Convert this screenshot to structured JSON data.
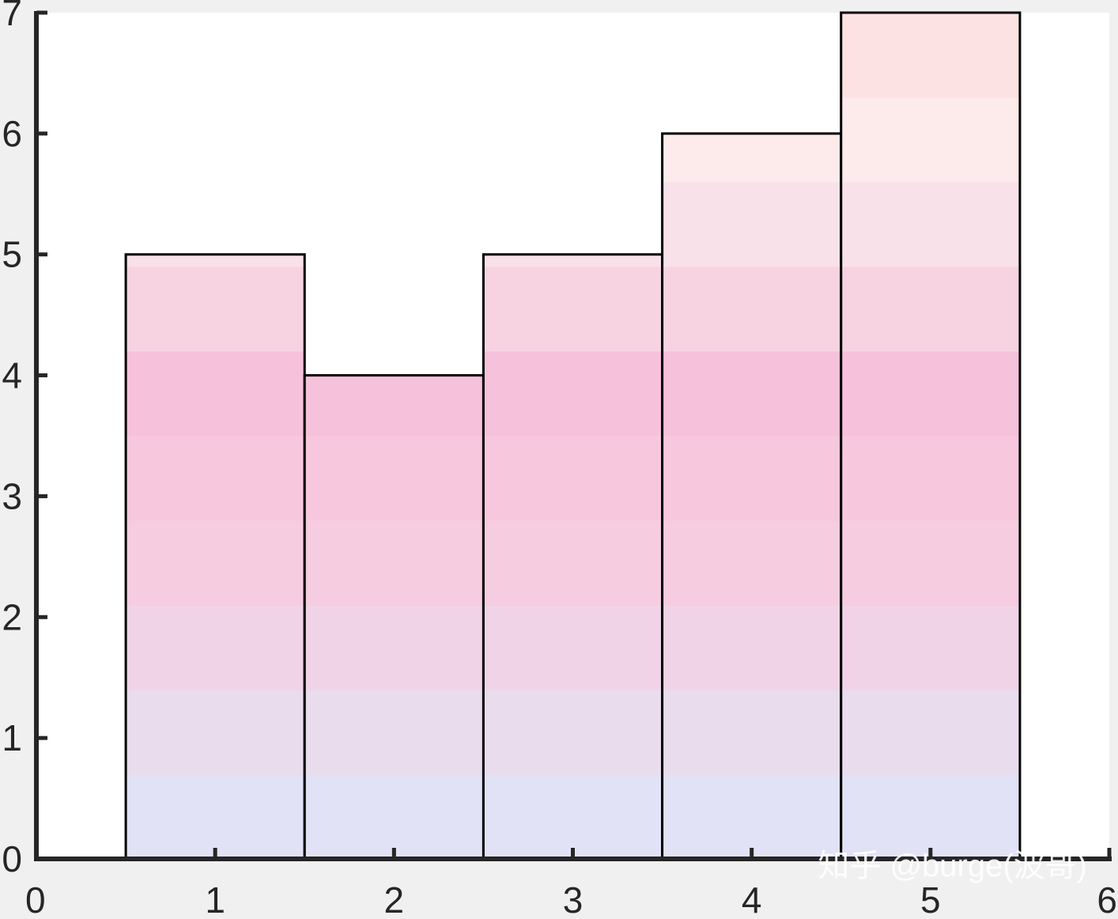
{
  "chart_data": {
    "type": "bar",
    "categories": [
      "1",
      "2",
      "3",
      "4",
      "5"
    ],
    "x": [
      1,
      2,
      3,
      4,
      5
    ],
    "values": [
      5,
      4,
      5,
      6,
      7
    ],
    "title": "",
    "xlabel": "",
    "ylabel": "",
    "xlim": [
      0,
      6
    ],
    "ylim": [
      0,
      7
    ],
    "xticks": [
      0,
      1,
      2,
      3,
      4,
      5,
      6
    ],
    "yticks": [
      0,
      1,
      2,
      3,
      4,
      5,
      6,
      7
    ],
    "bar_width": 1,
    "grid": false,
    "legend": "none",
    "fill_gradient": {
      "direction": "vertical",
      "bands_per_unit_height": 0.7,
      "colors": [
        "#e1e2f5",
        "#e9dced",
        "#f1d3e7",
        "#f6cde0",
        "#f7c8dd",
        "#f6c1da",
        "#f7d3e2",
        "#f9e1e9",
        "#fdeaea",
        "#fde2e4"
      ]
    },
    "colors": {
      "bar_edge": "#000000",
      "axis": "#262626",
      "plot_background": "#ffffff",
      "figure_background": "#f0f0f0"
    }
  },
  "watermark": "知乎 @burge(波哥)"
}
